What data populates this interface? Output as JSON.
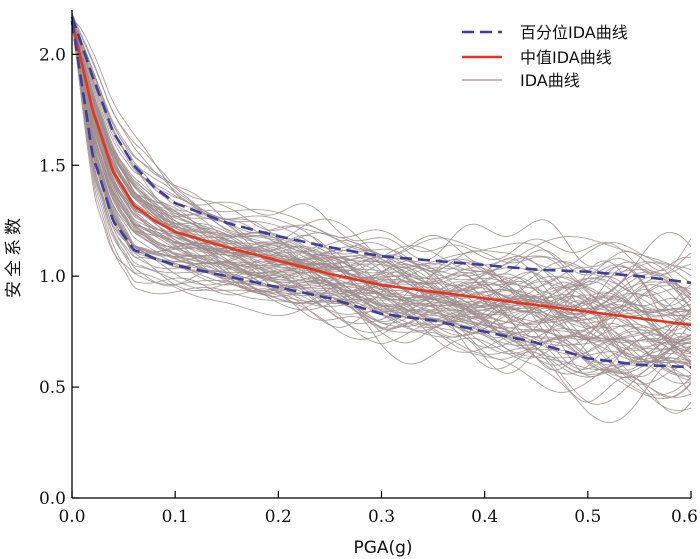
{
  "chart_data": {
    "type": "line",
    "xlabel": "PGA(g)",
    "ylabel": "安全系数",
    "xlim": [
      0,
      0.6
    ],
    "ylim": [
      0,
      2.2
    ],
    "x_ticks": [
      "0.0",
      "0.1",
      "0.2",
      "0.3",
      "0.4",
      "0.5",
      "0.6"
    ],
    "y_ticks": [
      "0.0",
      "0.5",
      "1.0",
      "1.5",
      "2.0"
    ],
    "grid": false,
    "legend_position": "top-right",
    "legend": [
      {
        "label": "百分位IDA曲线",
        "color": "#3b3f9e",
        "style": "dashed"
      },
      {
        "label": "中值IDA曲线",
        "color": "#e8341c",
        "style": "solid"
      },
      {
        "label": "IDA曲线",
        "color": "#a09090",
        "style": "solid"
      }
    ],
    "series": [
      {
        "name": "百分位IDA曲线",
        "style": "dashed",
        "color": "#3b3f9e",
        "x": [
          0,
          0.02,
          0.04,
          0.06,
          0.08,
          0.1,
          0.15,
          0.2,
          0.25,
          0.3,
          0.35,
          0.4,
          0.45,
          0.5,
          0.55,
          0.6
        ],
        "y": [
          2.17,
          1.9,
          1.65,
          1.5,
          1.4,
          1.33,
          1.24,
          1.18,
          1.13,
          1.09,
          1.07,
          1.05,
          1.03,
          1.02,
          1.0,
          0.97
        ]
      },
      {
        "name": "中值IDA曲线",
        "style": "solid",
        "color": "#e8341c",
        "x": [
          0,
          0.02,
          0.04,
          0.06,
          0.08,
          0.1,
          0.15,
          0.2,
          0.25,
          0.3,
          0.35,
          0.4,
          0.45,
          0.5,
          0.55,
          0.6
        ],
        "y": [
          2.15,
          1.75,
          1.47,
          1.32,
          1.25,
          1.2,
          1.13,
          1.07,
          1.01,
          0.96,
          0.93,
          0.9,
          0.87,
          0.84,
          0.81,
          0.78
        ]
      },
      {
        "name": "百分位IDA曲线",
        "style": "dashed",
        "color": "#3b3f9e",
        "x": [
          0,
          0.02,
          0.04,
          0.06,
          0.08,
          0.1,
          0.15,
          0.2,
          0.25,
          0.3,
          0.35,
          0.4,
          0.45,
          0.5,
          0.55,
          0.6
        ],
        "y": [
          2.15,
          1.55,
          1.25,
          1.12,
          1.08,
          1.05,
          1.0,
          0.95,
          0.9,
          0.83,
          0.8,
          0.75,
          0.7,
          0.63,
          0.6,
          0.59
        ]
      }
    ]
  }
}
